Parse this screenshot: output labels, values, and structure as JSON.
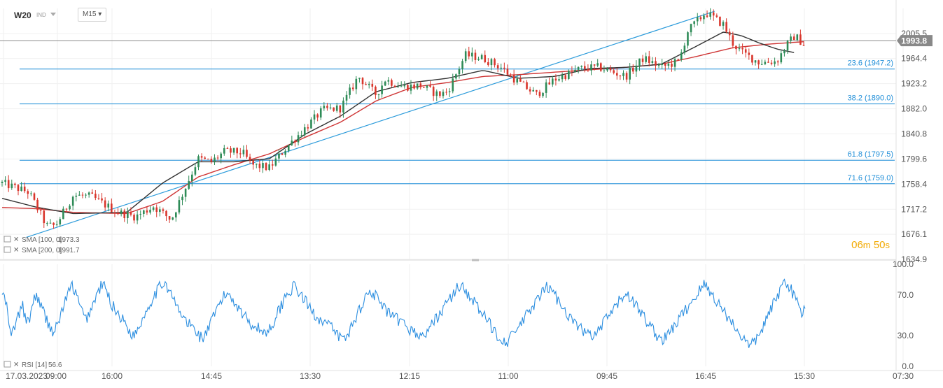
{
  "header": {
    "symbol": "W20",
    "instrument_type": "IND",
    "timeframe": "M15"
  },
  "current_price": "1993.8",
  "countdown": {
    "minutes": "06",
    "min_unit": "m",
    "seconds": "50",
    "sec_unit": "s"
  },
  "colors": {
    "up": "#2e8b57",
    "down": "#d9362c",
    "fib": "#1f8ed8",
    "trend": "#2d9cdb",
    "sma100": "#333333",
    "sma200": "#cf3535",
    "rsi": "#2d8fe0",
    "price_tag": "#888888"
  },
  "indicators": [
    {
      "label": "SMA [100, 0]",
      "value": "1973.3",
      "color": "#333333"
    },
    {
      "label": "SMA [200, 0]",
      "value": "1991.7",
      "color": "#cf3535"
    },
    {
      "label": "RSI [14]",
      "value": "56.6",
      "color": "#2d8fe0"
    }
  ],
  "chart_data": [
    {
      "type": "candlestick",
      "y_axis_ticks": [
        "2005.5",
        "1964.4",
        "1923.2",
        "1882.0",
        "1840.8",
        "1799.6",
        "1758.4",
        "1717.2",
        "1676.1",
        "1634.9"
      ],
      "ylim": [
        1634.9,
        2046.7
      ],
      "x_axis_ticks": [
        "17.03.2023",
        "09:00",
        "16:00",
        "14:45",
        "13:30",
        "12:15",
        "11:00",
        "09:45",
        "16:45",
        "15:30",
        "07:30"
      ],
      "fib_levels": [
        {
          "label": "23.6 (1947.2)",
          "value": 1947.2
        },
        {
          "label": "38.2 (1890.0)",
          "value": 1890.0
        },
        {
          "label": "61.8 (1797.5)",
          "value": 1797.5
        },
        {
          "label": "71.6 (1759.0)",
          "value": 1759.0
        }
      ],
      "current_price": 1993.8,
      "price_path": [
        [
          0,
          1760
        ],
        [
          3,
          1745
        ],
        [
          5,
          1690
        ],
        [
          6,
          1690
        ],
        [
          8,
          1740
        ],
        [
          10,
          1738
        ],
        [
          13,
          1712
        ],
        [
          15,
          1705
        ],
        [
          17,
          1722
        ],
        [
          19,
          1700
        ],
        [
          22,
          1800
        ],
        [
          23.5,
          1795
        ],
        [
          25,
          1812
        ],
        [
          27,
          1810
        ],
        [
          28,
          1790
        ],
        [
          30,
          1785
        ],
        [
          32,
          1820
        ],
        [
          34,
          1850
        ],
        [
          36,
          1880
        ],
        [
          38,
          1883
        ],
        [
          40,
          1935
        ],
        [
          42,
          1905
        ],
        [
          43,
          1930
        ],
        [
          45,
          1918
        ],
        [
          47,
          1920
        ],
        [
          49,
          1905
        ],
        [
          50,
          1910
        ],
        [
          52,
          1970
        ],
        [
          54,
          1965
        ],
        [
          56,
          1950
        ],
        [
          58,
          1925
        ],
        [
          60,
          1905
        ],
        [
          62,
          1930
        ],
        [
          65,
          1948
        ],
        [
          67,
          1950
        ],
        [
          70,
          1935
        ],
        [
          72,
          1965
        ],
        [
          74,
          1950
        ],
        [
          76,
          1960
        ],
        [
          77,
          2010
        ],
        [
          79,
          2040
        ],
        [
          81,
          2020
        ],
        [
          82,
          1990
        ],
        [
          83,
          1975
        ],
        [
          85,
          1958
        ],
        [
          87,
          1960
        ],
        [
          88,
          1985
        ],
        [
          89,
          2002
        ],
        [
          90,
          1988
        ]
      ],
      "trendline": [
        [
          0.5,
          1671
        ],
        [
          80,
          2042
        ]
      ],
      "sma100": [
        [
          0,
          1735
        ],
        [
          4,
          1720
        ],
        [
          8,
          1710
        ],
        [
          14,
          1712
        ],
        [
          18,
          1760
        ],
        [
          22,
          1795
        ],
        [
          26,
          1795
        ],
        [
          30,
          1800
        ],
        [
          34,
          1840
        ],
        [
          38,
          1870
        ],
        [
          42,
          1910
        ],
        [
          46,
          1925
        ],
        [
          50,
          1932
        ],
        [
          54,
          1945
        ],
        [
          58,
          1932
        ],
        [
          62,
          1935
        ],
        [
          66,
          1948
        ],
        [
          70,
          1950
        ],
        [
          74,
          1955
        ],
        [
          78,
          1985
        ],
        [
          81,
          2008
        ],
        [
          83,
          2002
        ],
        [
          85,
          1990
        ],
        [
          87,
          1980
        ],
        [
          89,
          1974
        ]
      ],
      "sma200": [
        [
          0,
          1720
        ],
        [
          4,
          1718
        ],
        [
          8,
          1712
        ],
        [
          14,
          1710
        ],
        [
          18,
          1730
        ],
        [
          22,
          1770
        ],
        [
          26,
          1790
        ],
        [
          30,
          1808
        ],
        [
          34,
          1835
        ],
        [
          38,
          1860
        ],
        [
          42,
          1895
        ],
        [
          46,
          1917
        ],
        [
          50,
          1925
        ],
        [
          54,
          1935
        ],
        [
          58,
          1938
        ],
        [
          62,
          1942
        ],
        [
          66,
          1946
        ],
        [
          70,
          1950
        ],
        [
          74,
          1955
        ],
        [
          78,
          1968
        ],
        [
          82,
          1982
        ],
        [
          86,
          1988
        ],
        [
          90,
          1992
        ]
      ]
    },
    {
      "type": "line",
      "series_label": "RSI [14]",
      "y_axis_ticks": [
        "100.0",
        "70.0",
        "30.0",
        "0.0"
      ],
      "ylim": [
        0,
        100
      ],
      "values": [
        72,
        65,
        52,
        26,
        38,
        44,
        52,
        60,
        48,
        40,
        55,
        66,
        70,
        62,
        55,
        48,
        42,
        36,
        33,
        40,
        48,
        58,
        66,
        72,
        80,
        74,
        66,
        58,
        50,
        46,
        52,
        58,
        66,
        72,
        78,
        80,
        74,
        66,
        60,
        56,
        52,
        48,
        44,
        40,
        35,
        30,
        32,
        38,
        44,
        50,
        56,
        62,
        68,
        72,
        76,
        80,
        84,
        78,
        72,
        66,
        60,
        54,
        50,
        46,
        42,
        40,
        38,
        34,
        30,
        28,
        30,
        36,
        42,
        48,
        55,
        62,
        66,
        70,
        72,
        68,
        64,
        60,
        56,
        52,
        48,
        45,
        42,
        40,
        38,
        36,
        34,
        33,
        36,
        40,
        46,
        52,
        58,
        64,
        70,
        74,
        76,
        78,
        74,
        70,
        66,
        62,
        58,
        54,
        50,
        48,
        46,
        44,
        42,
        40,
        36,
        32,
        30,
        28,
        26,
        30,
        36,
        42,
        48,
        54,
        60,
        66,
        70,
        74,
        72,
        68,
        64,
        60,
        56,
        52,
        50,
        48,
        46,
        44,
        42,
        40,
        38,
        36,
        34,
        32,
        30,
        28,
        32,
        36,
        40,
        44,
        48,
        52,
        56,
        60,
        64,
        68,
        72,
        76,
        80,
        78,
        74,
        70,
        66,
        62,
        58,
        54,
        50,
        46,
        42,
        38,
        34,
        30,
        28,
        26,
        24,
        26,
        30,
        34,
        38,
        42,
        46,
        50,
        54,
        58,
        62,
        66,
        70,
        74,
        78,
        76,
        72,
        68,
        64,
        60,
        56,
        52,
        48,
        44,
        40,
        38,
        36,
        34,
        32,
        30,
        28,
        32,
        36,
        40,
        44,
        48,
        52,
        56,
        60,
        64,
        68,
        72,
        70,
        66,
        62,
        58,
        54,
        50,
        46,
        42,
        38,
        34,
        30,
        28,
        26,
        28,
        32,
        36,
        40,
        44,
        48,
        52,
        56,
        60,
        64,
        68,
        72,
        76,
        80,
        78,
        74,
        70,
        66,
        62,
        58,
        54,
        50,
        46,
        42,
        38,
        34,
        30,
        26,
        22,
        20,
        22,
        26,
        30,
        36,
        42,
        48,
        54,
        60,
        66,
        72,
        78,
        84,
        82,
        76,
        70,
        64,
        58,
        52,
        56.6
      ]
    }
  ]
}
